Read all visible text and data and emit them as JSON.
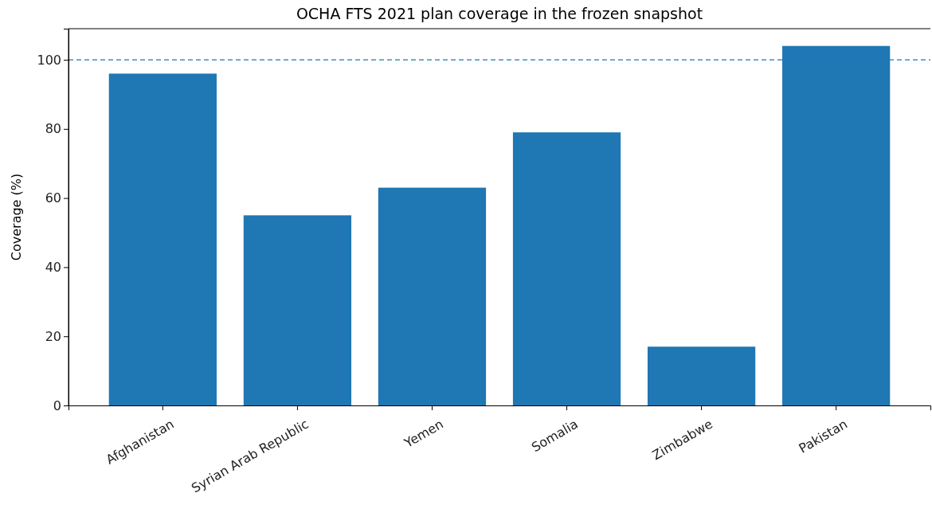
{
  "chart_data": {
    "type": "bar",
    "title": "OCHA FTS 2021 plan coverage in the frozen snapshot",
    "ylabel": "Coverage (%)",
    "categories": [
      "Afghanistan",
      "Syrian Arab Republic",
      "Yemen",
      "Somalia",
      "Zimbabwe",
      "Pakistan"
    ],
    "values": [
      96,
      55,
      63,
      79,
      17,
      104
    ],
    "color": "#1f77b4",
    "ylim": [
      0,
      109
    ],
    "yticks": [
      0,
      20,
      40,
      60,
      80,
      100
    ],
    "ref_lines": [
      {
        "axis": "y",
        "value": 100,
        "label": null,
        "color": "#1f77b4",
        "line_style": "dashed"
      }
    ]
  }
}
